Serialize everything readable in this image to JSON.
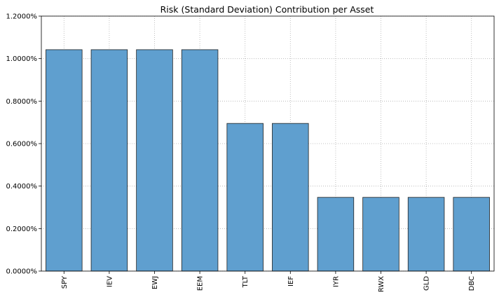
{
  "chart_data": {
    "type": "bar",
    "title": "Risk (Standard Deviation) Contribution per Asset",
    "xlabel": "",
    "ylabel": "",
    "categories": [
      "SPY",
      "IEV",
      "EWJ",
      "EEM",
      "TLT",
      "IEF",
      "IYR",
      "RWX",
      "GLD",
      "DBC"
    ],
    "values": [
      1.042,
      1.042,
      1.042,
      1.042,
      0.695,
      0.695,
      0.347,
      0.347,
      0.347,
      0.347
    ],
    "ylim": [
      0,
      1.2
    ],
    "yticks": [
      "0.0000%",
      "0.2000%",
      "0.4000%",
      "0.6000%",
      "0.8000%",
      "1.0000%",
      "1.2000%"
    ],
    "ytick_values": [
      0,
      0.2,
      0.4,
      0.6,
      0.8,
      1.0,
      1.2
    ],
    "grid": true,
    "bar_color": "#5f9fcf",
    "edge_color": "#222222"
  }
}
